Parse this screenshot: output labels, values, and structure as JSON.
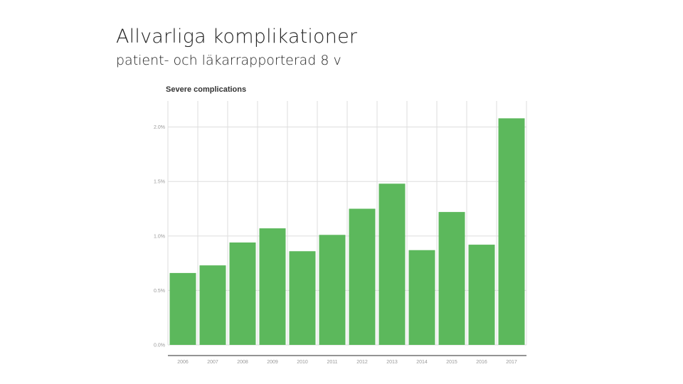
{
  "slide": {
    "title": "Allvarliga komplikationer",
    "subtitle": "patient- och läkarrapporterad 8 v"
  },
  "chart_data": {
    "type": "bar",
    "title": "Severe complications",
    "xlabel": "",
    "ylabel": "",
    "categories": [
      "2006",
      "2007",
      "2008",
      "2009",
      "2010",
      "2011",
      "2012",
      "2013",
      "2014",
      "2015",
      "2016",
      "2017"
    ],
    "values": [
      0.66,
      0.73,
      0.94,
      1.07,
      0.86,
      1.01,
      1.25,
      1.48,
      0.87,
      1.22,
      0.92,
      2.08
    ],
    "ylim": [
      0,
      2.2
    ],
    "yticks": [
      0.0,
      0.5,
      1.0,
      1.5,
      2.0
    ],
    "ytick_labels": [
      "0.0%",
      "0.5%",
      "1.0%",
      "1.5%",
      "2.0%"
    ],
    "grid": true,
    "bar_color": "#5cb85c",
    "grid_color": "#dddddd",
    "axis_color": "#555555"
  }
}
